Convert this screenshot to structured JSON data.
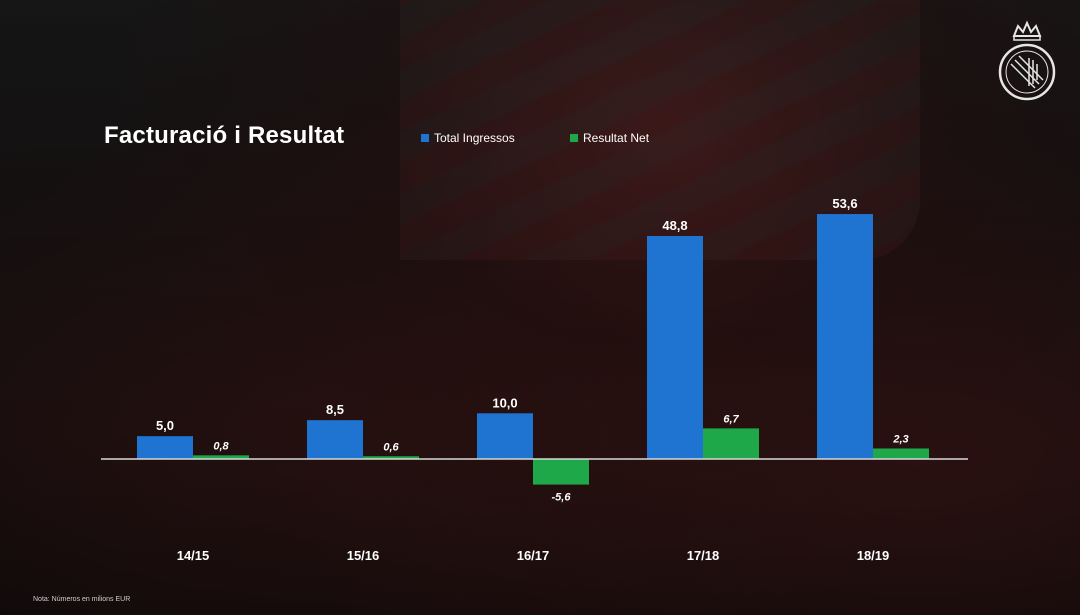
{
  "title": "Facturació i Resultat",
  "footnote": "Nota: Números en milions EUR",
  "colors": {
    "income": "#1f73d1",
    "net": "#1fa84a",
    "axis": "#d8d8d8"
  },
  "chart_data": {
    "type": "bar",
    "title": "Facturació i Resultat",
    "categories": [
      "14/15",
      "15/16",
      "16/17",
      "17/18",
      "18/19"
    ],
    "series": [
      {
        "name": "Total Ingressos",
        "values": [
          5.0,
          8.5,
          10.0,
          48.8,
          53.6
        ],
        "labels": [
          "5,0",
          "8,5",
          "10,0",
          "48,8",
          "53,6"
        ]
      },
      {
        "name": "Resultat Net",
        "values": [
          0.8,
          0.6,
          -5.6,
          6.7,
          2.3
        ],
        "labels": [
          "0,8",
          "0,6",
          "-5,6",
          "6,7",
          "2,3"
        ]
      }
    ],
    "legend": "top",
    "grid": false
  }
}
